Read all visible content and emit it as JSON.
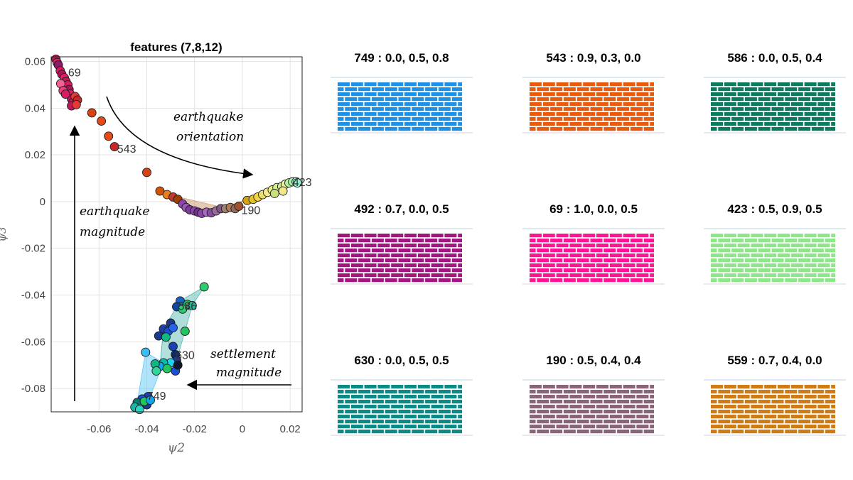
{
  "chart_data": {
    "type": "scatter",
    "title": "features (7,8,12)",
    "xlabel": "ψ2",
    "ylabel": "ψ3",
    "xlim": [
      -0.08,
      0.025
    ],
    "ylim": [
      -0.09,
      0.062
    ],
    "xticks": [
      -0.06,
      -0.04,
      -0.02,
      0,
      0.02
    ],
    "xtick_labels": [
      "-0.06",
      "-0.04",
      "-0.02",
      "0",
      "0.02"
    ],
    "yticks": [
      0.06,
      0.04,
      0.02,
      0,
      -0.02,
      -0.04,
      -0.06,
      -0.08
    ],
    "ytick_labels": [
      "0.06",
      "0.04",
      "0.02",
      "0",
      "-0.02",
      "-0.04",
      "-0.06",
      "-0.08"
    ],
    "grid": true,
    "point_labels": [
      {
        "text": "69",
        "x": -0.0735,
        "y": 0.0555
      },
      {
        "text": "543",
        "x": -0.053,
        "y": 0.0228
      },
      {
        "text": "190",
        "x": -0.001,
        "y": -0.0035
      },
      {
        "text": "423",
        "x": 0.0205,
        "y": 0.0085
      },
      {
        "text": "586",
        "x": -0.0275,
        "y": -0.0445
      },
      {
        "text": "630",
        "x": -0.0285,
        "y": -0.0655
      },
      {
        "text": "749",
        "x": -0.0405,
        "y": -0.083
      }
    ],
    "annotations": [
      {
        "text_lines": [
          "earthquake",
          "orientation"
        ]
      },
      {
        "text_lines": [
          "earthquake",
          "magnitude"
        ]
      },
      {
        "text_lines": [
          "settlement",
          "magnitude"
        ]
      }
    ],
    "points": [
      {
        "x": -0.078,
        "y": 0.061,
        "c": "#c2185b"
      },
      {
        "x": -0.0775,
        "y": 0.0595,
        "c": "#e91e63"
      },
      {
        "x": -0.077,
        "y": 0.0585,
        "c": "#8e1a6a"
      },
      {
        "x": -0.0762,
        "y": 0.056,
        "c": "#d81b60"
      },
      {
        "x": -0.0755,
        "y": 0.0545,
        "c": "#ad1457"
      },
      {
        "x": -0.0745,
        "y": 0.053,
        "c": "#e91e63"
      },
      {
        "x": -0.0738,
        "y": 0.0515,
        "c": "#c2185b"
      },
      {
        "x": -0.073,
        "y": 0.05,
        "c": "#d81b60"
      },
      {
        "x": -0.0725,
        "y": 0.048,
        "c": "#ad1457"
      },
      {
        "x": -0.072,
        "y": 0.046,
        "c": "#e91e63"
      },
      {
        "x": -0.0715,
        "y": 0.044,
        "c": "#c2185b"
      },
      {
        "x": -0.0708,
        "y": 0.0425,
        "c": "#d81b60"
      },
      {
        "x": -0.07,
        "y": 0.045,
        "c": "#e53935"
      },
      {
        "x": -0.069,
        "y": 0.0435,
        "c": "#c62828"
      },
      {
        "x": -0.076,
        "y": 0.0505,
        "c": "#f06292"
      },
      {
        "x": -0.075,
        "y": 0.0475,
        "c": "#ec407a"
      },
      {
        "x": -0.074,
        "y": 0.046,
        "c": "#d81b60"
      },
      {
        "x": -0.0715,
        "y": 0.041,
        "c": "#c2185b"
      },
      {
        "x": -0.0695,
        "y": 0.0415,
        "c": "#e53935"
      },
      {
        "x": -0.063,
        "y": 0.038,
        "c": "#d84315"
      },
      {
        "x": -0.059,
        "y": 0.0345,
        "c": "#e64a19"
      },
      {
        "x": -0.056,
        "y": 0.028,
        "c": "#e64a19"
      },
      {
        "x": -0.0535,
        "y": 0.0235,
        "c": "#c62828"
      },
      {
        "x": -0.04,
        "y": 0.0125,
        "c": "#d84315"
      },
      {
        "x": -0.0345,
        "y": 0.0045,
        "c": "#d35400"
      },
      {
        "x": -0.0315,
        "y": 0.003,
        "c": "#e67e22"
      },
      {
        "x": -0.029,
        "y": 0.002,
        "c": "#c0392b"
      },
      {
        "x": -0.027,
        "y": 0.001,
        "c": "#a04000"
      },
      {
        "x": -0.025,
        "y": -0.001,
        "c": "#8e44ad"
      },
      {
        "x": -0.0235,
        "y": -0.0025,
        "c": "#9b59b6"
      },
      {
        "x": -0.022,
        "y": -0.0035,
        "c": "#7d3c98"
      },
      {
        "x": -0.02,
        "y": -0.004,
        "c": "#8e44ad"
      },
      {
        "x": -0.0185,
        "y": -0.0045,
        "c": "#6c3483"
      },
      {
        "x": -0.017,
        "y": -0.005,
        "c": "#8e44ad"
      },
      {
        "x": -0.015,
        "y": -0.0045,
        "c": "#a569bd"
      },
      {
        "x": -0.013,
        "y": -0.0048,
        "c": "#884ea0"
      },
      {
        "x": -0.011,
        "y": -0.004,
        "c": "#9b6b9b"
      },
      {
        "x": -0.009,
        "y": -0.003,
        "c": "#7f5a83"
      },
      {
        "x": -0.007,
        "y": -0.003,
        "c": "#a08070"
      },
      {
        "x": -0.005,
        "y": -0.0025,
        "c": "#b07a5a"
      },
      {
        "x": -0.003,
        "y": -0.003,
        "c": "#8e6e5e"
      },
      {
        "x": -0.0015,
        "y": -0.002,
        "c": "#a0522d"
      },
      {
        "x": 0.002,
        "y": 0.0005,
        "c": "#d4a017"
      },
      {
        "x": 0.0045,
        "y": 0.001,
        "c": "#e6c229"
      },
      {
        "x": 0.0065,
        "y": 0.002,
        "c": "#f1d24a"
      },
      {
        "x": 0.0085,
        "y": 0.003,
        "c": "#e9e06a"
      },
      {
        "x": 0.0105,
        "y": 0.004,
        "c": "#f4ea8a"
      },
      {
        "x": 0.0125,
        "y": 0.005,
        "c": "#e8f08a"
      },
      {
        "x": 0.0145,
        "y": 0.006,
        "c": "#d6ee8a"
      },
      {
        "x": 0.0165,
        "y": 0.0065,
        "c": "#c8e88a"
      },
      {
        "x": 0.018,
        "y": 0.0075,
        "c": "#e6f0a0"
      },
      {
        "x": 0.0195,
        "y": 0.008,
        "c": "#b9f0a0"
      },
      {
        "x": 0.021,
        "y": 0.0085,
        "c": "#a5f0b0"
      },
      {
        "x": 0.0225,
        "y": 0.0085,
        "c": "#9cf5c8"
      },
      {
        "x": 0.023,
        "y": 0.008,
        "c": "#8ff0d5"
      },
      {
        "x": 0.017,
        "y": 0.0045,
        "c": "#f2e68a"
      },
      {
        "x": 0.0135,
        "y": 0.0035,
        "c": "#c9e07a"
      },
      {
        "x": -0.016,
        "y": -0.0365,
        "c": "#2ecc71"
      },
      {
        "x": -0.026,
        "y": -0.0425,
        "c": "#1565c0"
      },
      {
        "x": -0.0275,
        "y": -0.045,
        "c": "#0d47a1"
      },
      {
        "x": -0.023,
        "y": -0.044,
        "c": "#27ae60"
      },
      {
        "x": -0.021,
        "y": -0.0445,
        "c": "#1abc9c"
      },
      {
        "x": -0.025,
        "y": -0.046,
        "c": "#2ecc71"
      },
      {
        "x": -0.03,
        "y": -0.052,
        "c": "#1e3a8a"
      },
      {
        "x": -0.033,
        "y": -0.0545,
        "c": "#1e40af"
      },
      {
        "x": -0.031,
        "y": -0.0555,
        "c": "#1d4ed8"
      },
      {
        "x": -0.029,
        "y": -0.054,
        "c": "#2563eb"
      },
      {
        "x": -0.024,
        "y": -0.0555,
        "c": "#22c55e"
      },
      {
        "x": -0.035,
        "y": -0.0575,
        "c": "#1e3a8a"
      },
      {
        "x": -0.032,
        "y": -0.058,
        "c": "#10b981"
      },
      {
        "x": -0.029,
        "y": -0.062,
        "c": "#1e40af"
      },
      {
        "x": -0.028,
        "y": -0.0655,
        "c": "#0f2a6b"
      },
      {
        "x": -0.0275,
        "y": -0.068,
        "c": "#1e3a8a"
      },
      {
        "x": -0.03,
        "y": -0.069,
        "c": "#22d3ee"
      },
      {
        "x": -0.033,
        "y": -0.069,
        "c": "#14b8a6"
      },
      {
        "x": -0.0345,
        "y": -0.0705,
        "c": "#0ea5e9"
      },
      {
        "x": -0.0315,
        "y": -0.0715,
        "c": "#22c55e"
      },
      {
        "x": -0.028,
        "y": -0.0725,
        "c": "#1d4ed8"
      },
      {
        "x": -0.027,
        "y": -0.07,
        "c": "#0f172a"
      },
      {
        "x": -0.0405,
        "y": -0.0645,
        "c": "#38bdf8"
      },
      {
        "x": -0.0365,
        "y": -0.0695,
        "c": "#10b981"
      },
      {
        "x": -0.036,
        "y": -0.0725,
        "c": "#34d399"
      },
      {
        "x": -0.0395,
        "y": -0.0835,
        "c": "#1e40af"
      },
      {
        "x": -0.042,
        "y": -0.0845,
        "c": "#1d4ed8"
      },
      {
        "x": -0.044,
        "y": -0.086,
        "c": "#0f766e"
      },
      {
        "x": -0.045,
        "y": -0.088,
        "c": "#14b8a6"
      },
      {
        "x": -0.04,
        "y": -0.087,
        "c": "#1e3a8a"
      },
      {
        "x": -0.041,
        "y": -0.0855,
        "c": "#22c55e"
      },
      {
        "x": -0.043,
        "y": -0.089,
        "c": "#2dd4bf"
      },
      {
        "x": -0.0385,
        "y": -0.085,
        "c": "#0ea5e9"
      }
    ],
    "hulls": [
      {
        "color": "#cfa07a",
        "opacity": 0.55,
        "pts": [
          [
            -0.033,
            0.0035
          ],
          [
            -0.006,
            -0.003
          ],
          [
            0.002,
            0.001
          ],
          [
            -0.015,
            -0.0048
          ],
          [
            -0.025,
            -0.001
          ]
        ]
      },
      {
        "color": "#4db6ac",
        "opacity": 0.45,
        "pts": [
          [
            -0.016,
            -0.0365
          ],
          [
            -0.026,
            -0.0425
          ],
          [
            -0.033,
            -0.0545
          ],
          [
            -0.0275,
            -0.068
          ],
          [
            -0.024,
            -0.0555
          ],
          [
            -0.021,
            -0.0445
          ]
        ]
      },
      {
        "color": "#4fc3f7",
        "opacity": 0.45,
        "pts": [
          [
            -0.0405,
            -0.0645
          ],
          [
            -0.033,
            -0.069
          ],
          [
            -0.04,
            -0.087
          ],
          [
            -0.045,
            -0.088
          ],
          [
            -0.044,
            -0.086
          ]
        ]
      },
      {
        "color": "#26a69a",
        "opacity": 0.35,
        "pts": [
          [
            -0.033,
            -0.0545
          ],
          [
            -0.027,
            -0.07
          ],
          [
            -0.0315,
            -0.0715
          ],
          [
            -0.0345,
            -0.0705
          ]
        ]
      }
    ]
  },
  "panels": [
    {
      "title": "749 : 0.0, 0.5, 0.8",
      "color": "#1e90e6"
    },
    {
      "title": "543 : 0.9, 0.3, 0.0",
      "color": "#ea5a0d"
    },
    {
      "title": "586 : 0.0, 0.5, 0.4",
      "color": "#0b7a5e"
    },
    {
      "title": "492 : 0.7, 0.0, 0.5",
      "color": "#a1167f"
    },
    {
      "title": "69 : 1.0, 0.0, 0.5",
      "color": "#ff1493"
    },
    {
      "title": "423 : 0.5, 0.9, 0.5",
      "color": "#8fe68a"
    },
    {
      "title": "630 : 0.0, 0.5, 0.5",
      "color": "#0e8a86"
    },
    {
      "title": "190 : 0.5, 0.4, 0.4",
      "color": "#8a6478"
    },
    {
      "title": "559 : 0.7, 0.4, 0.0",
      "color": "#cf7c16"
    }
  ]
}
